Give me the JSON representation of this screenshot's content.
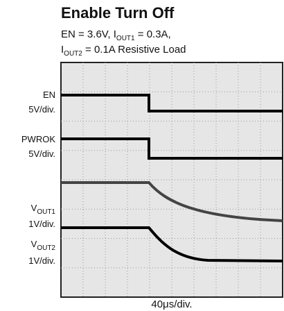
{
  "title": "Enable Turn Off",
  "subtitle": {
    "line1": [
      "EN = 3.6V, I",
      "OUT1",
      " = 0.3A,"
    ],
    "line2": [
      "I",
      "OUT2",
      " = 0.1A Resistive Load"
    ]
  },
  "channels": [
    {
      "name": [
        "EN"
      ],
      "scale": "5V/div."
    },
    {
      "name": [
        "PWROK"
      ],
      "scale": "5V/div."
    },
    {
      "name": [
        "V",
        "OUT1"
      ],
      "scale": "1V/div."
    },
    {
      "name": [
        "V",
        "OUT2"
      ],
      "scale": "1V/div."
    }
  ],
  "x_label": "40μs/div."
}
